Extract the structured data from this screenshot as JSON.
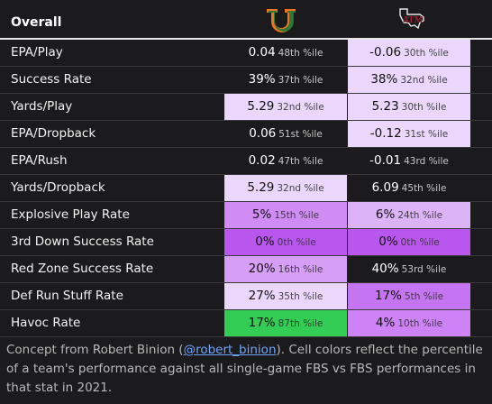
{
  "header": {
    "title": "Overall",
    "team1_logo": "miami-u-logo",
    "team2_logo": "texas-am-atm-logo"
  },
  "rows": [
    {
      "label": "EPA/Play",
      "t1": {
        "value": "0.04",
        "pct": "48th %ile",
        "bg": "#1b1b1d"
      },
      "t2": {
        "value": "-0.06",
        "pct": "30th %ile",
        "bg": "#ead7fb"
      }
    },
    {
      "label": "Success Rate",
      "t1": {
        "value": "39%",
        "pct": "37th %ile",
        "bg": "#1b1b1d"
      },
      "t2": {
        "value": "38%",
        "pct": "32nd %ile",
        "bg": "#ead7fb"
      }
    },
    {
      "label": "Yards/Play",
      "t1": {
        "value": "5.29",
        "pct": "32nd %ile",
        "bg": "#ead7fb"
      },
      "t2": {
        "value": "5.23",
        "pct": "30th %ile",
        "bg": "#ead7fb"
      }
    },
    {
      "label": "EPA/Dropback",
      "t1": {
        "value": "0.06",
        "pct": "51st %ile",
        "bg": "#1b1b1d"
      },
      "t2": {
        "value": "-0.12",
        "pct": "31st %ile",
        "bg": "#ead7fb"
      }
    },
    {
      "label": "EPA/Rush",
      "t1": {
        "value": "0.02",
        "pct": "47th %ile",
        "bg": "#1b1b1d"
      },
      "t2": {
        "value": "-0.01",
        "pct": "43rd %ile",
        "bg": "#1b1b1d"
      }
    },
    {
      "label": "Yards/Dropback",
      "t1": {
        "value": "5.29",
        "pct": "32nd %ile",
        "bg": "#ead7fb"
      },
      "t2": {
        "value": "6.09",
        "pct": "45th %ile",
        "bg": "#1b1b1d"
      }
    },
    {
      "label": "Explosive Play Rate",
      "t1": {
        "value": "5%",
        "pct": "15th %ile",
        "bg": "#d08bf5"
      },
      "t2": {
        "value": "6%",
        "pct": "24th %ile",
        "bg": "#ddb3f7"
      }
    },
    {
      "label": "3rd Down Success Rate",
      "t1": {
        "value": "0%",
        "pct": "0th %ile",
        "bg": "#b956ee"
      },
      "t2": {
        "value": "0%",
        "pct": "0th %ile",
        "bg": "#b956ee"
      }
    },
    {
      "label": "Red Zone Success Rate",
      "t1": {
        "value": "20%",
        "pct": "16th %ile",
        "bg": "#d79ef6"
      },
      "t2": {
        "value": "40%",
        "pct": "53rd %ile",
        "bg": "#1b1b1d"
      }
    },
    {
      "label": "Def Run Stuff Rate",
      "t1": {
        "value": "27%",
        "pct": "35th %ile",
        "bg": "#ead7fb"
      },
      "t2": {
        "value": "17%",
        "pct": "5th %ile",
        "bg": "#c574f2"
      }
    },
    {
      "label": "Havoc Rate",
      "t1": {
        "value": "17%",
        "pct": "87th %ile",
        "bg": "#33cc55"
      },
      "t2": {
        "value": "4%",
        "pct": "10th %ile",
        "bg": "#cd83f5"
      }
    }
  ],
  "footer": {
    "pre": "Concept from Robert Binion (",
    "handle": "@robert_binion",
    "post": "). Cell colors reflect the percentile of a team's performance against all single-game FBS vs FBS performances in that stat in 2021."
  }
}
